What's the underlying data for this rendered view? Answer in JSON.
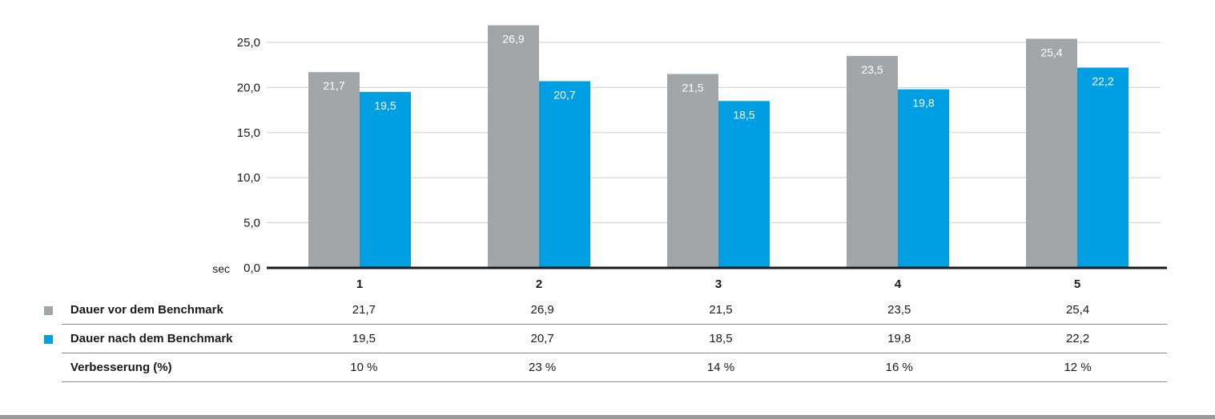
{
  "chart_data": {
    "type": "bar",
    "unit_label": "sec",
    "categories": [
      "1",
      "2",
      "3",
      "4",
      "5"
    ],
    "series": [
      {
        "name": "Dauer vor dem Benchmark",
        "color": "#a2a6a8",
        "values": [
          21.7,
          26.9,
          21.5,
          23.5,
          25.4
        ],
        "labels": [
          "21,7",
          "26,9",
          "21,5",
          "23,5",
          "25,4"
        ]
      },
      {
        "name": "Dauer nach dem Benchmark",
        "color": "#009fe3",
        "values": [
          19.5,
          20.7,
          18.5,
          19.8,
          22.2
        ],
        "labels": [
          "19,5",
          "20,7",
          "18,5",
          "19,8",
          "22,2"
        ]
      }
    ],
    "yticks": [
      "0,0",
      "5,0",
      "10,0",
      "15,0",
      "20,0",
      "25,0"
    ],
    "ylim": [
      0,
      25
    ],
    "grid": true
  },
  "table": {
    "rows": [
      {
        "label": "Dauer vor dem Benchmark",
        "color": "#a2a6a8",
        "values": [
          "21,7",
          "26,9",
          "21,5",
          "23,5",
          "25,4"
        ]
      },
      {
        "label": "Dauer nach dem Benchmark",
        "color": "#009fe3",
        "values": [
          "19,5",
          "20,7",
          "18,5",
          "19,8",
          "22,2"
        ]
      },
      {
        "label": "Verbesserung (%)",
        "color": "",
        "values": [
          "10 %",
          "23 %",
          "14 %",
          "16 %",
          "12 %"
        ]
      }
    ]
  }
}
